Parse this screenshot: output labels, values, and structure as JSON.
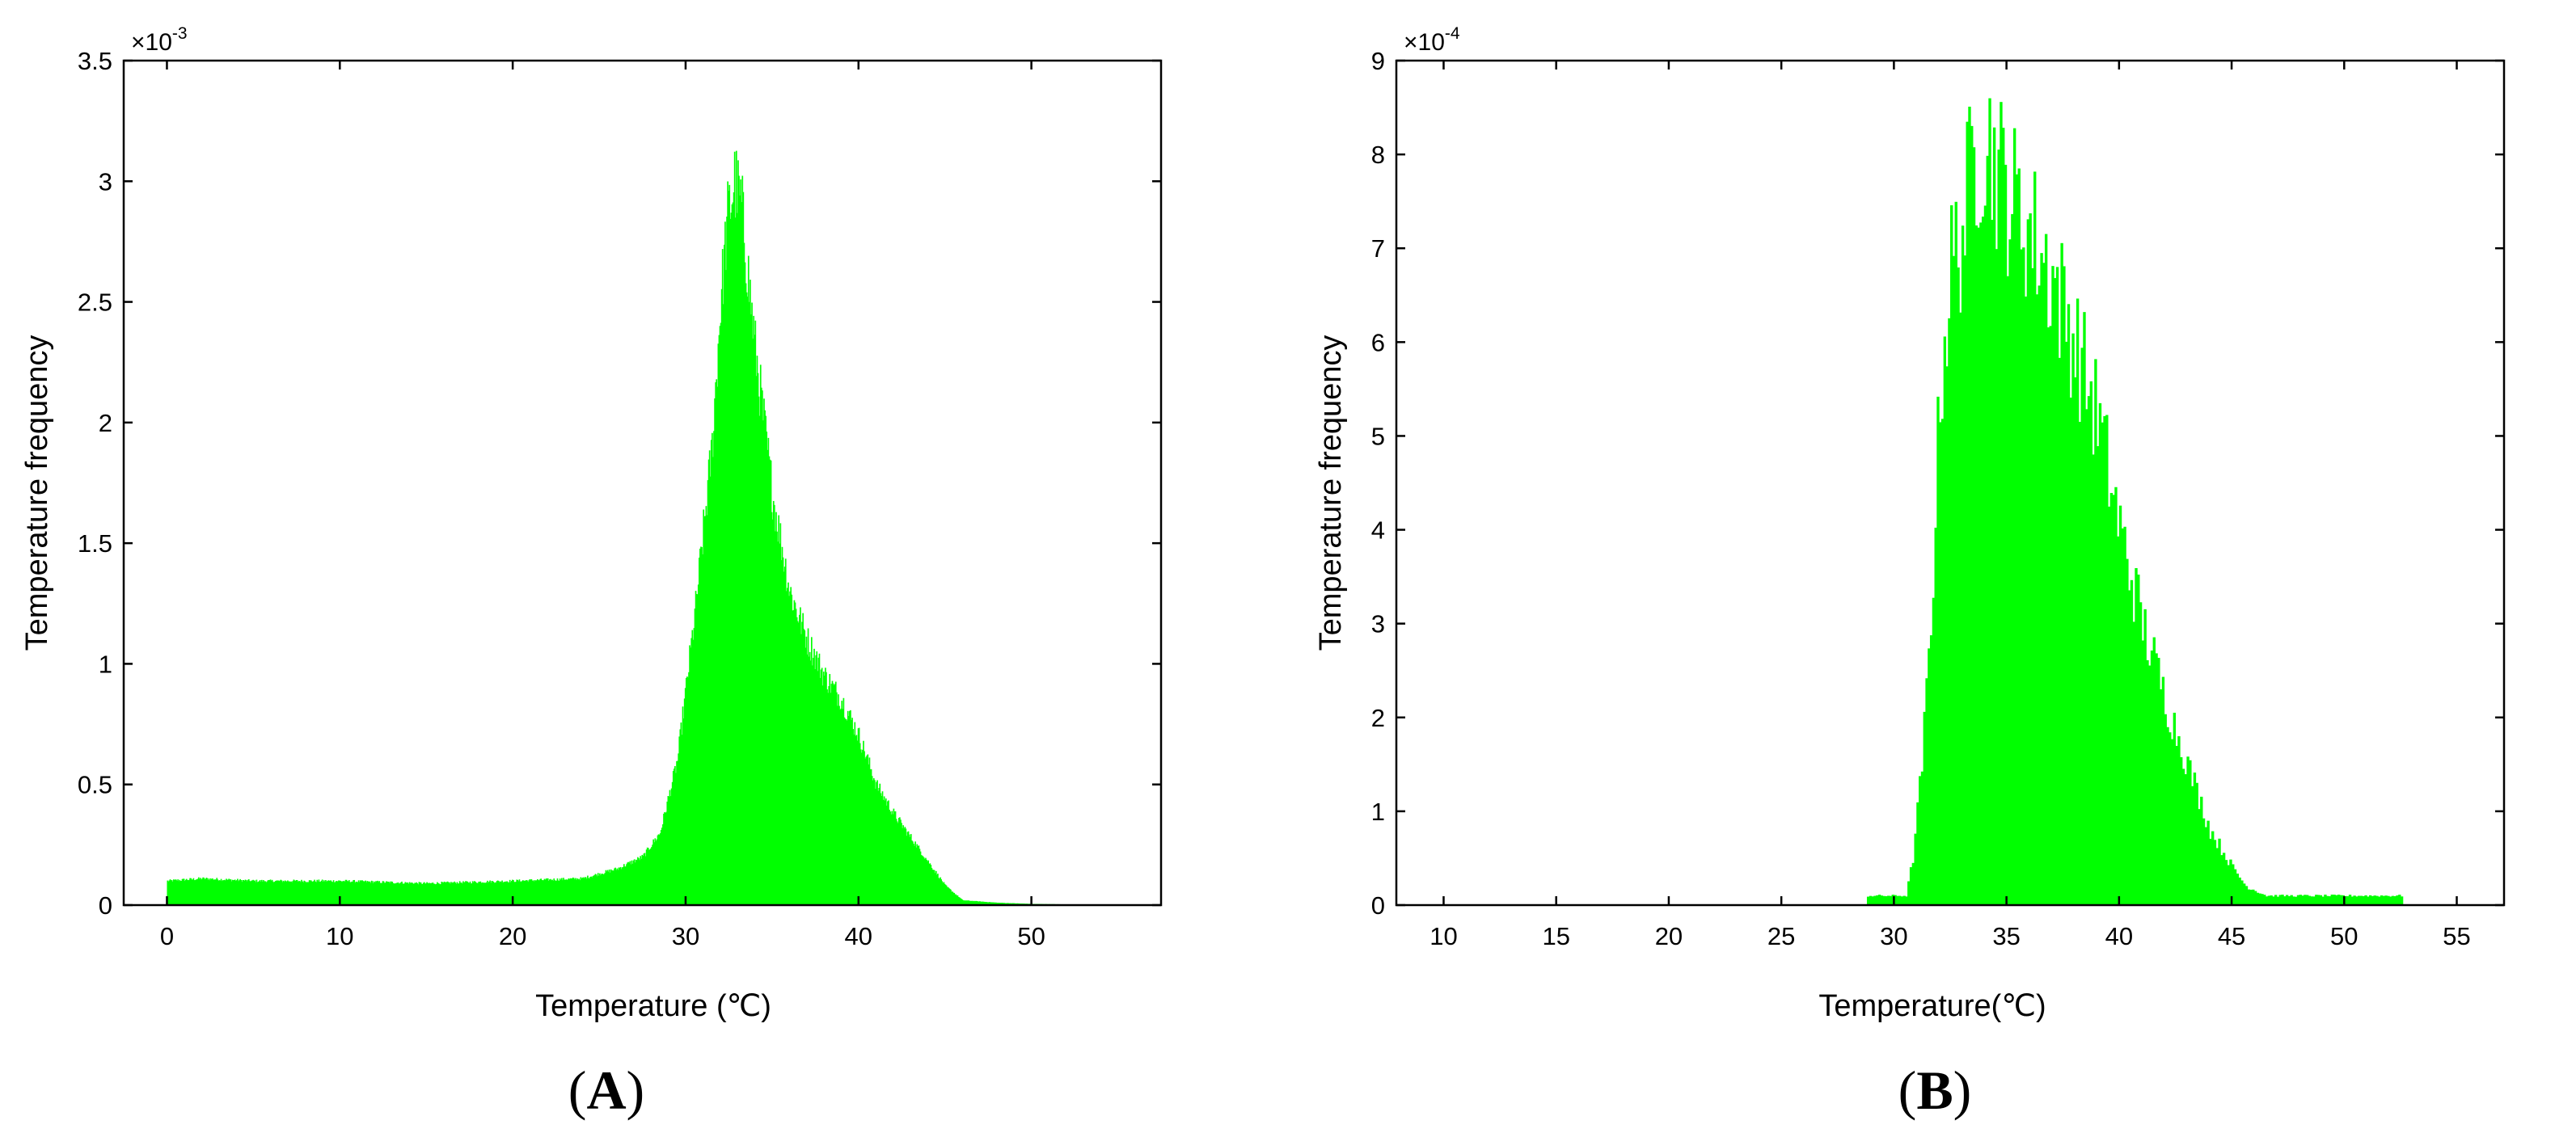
{
  "colors": {
    "bar": "#00ff00",
    "axis": "#000000",
    "background": "#ffffff"
  },
  "chart_data": [
    {
      "type": "bar",
      "panel": "A",
      "xlabel": "Temperature (℃)",
      "ylabel": "Temperature frequency",
      "y_exponent_base": "×10",
      "y_exponent": "-3",
      "xlim": [
        -2.5,
        57.5
      ],
      "ylim": [
        0,
        0.0035
      ],
      "xticks": [
        0,
        10,
        20,
        30,
        40,
        50
      ],
      "yticks": [
        0,
        0.0005,
        0.001,
        0.0015,
        0.002,
        0.0025,
        0.003,
        0.0035
      ],
      "ytick_labels": [
        "0",
        "0.5",
        "1",
        "1.5",
        "2",
        "2.5",
        "3",
        "3.5"
      ],
      "grid": false,
      "distribution": {
        "x": [
          0,
          2,
          5,
          10,
          15,
          20,
          24,
          26,
          27.5,
          28.5,
          29.5,
          30.5,
          31.5,
          32,
          32.4,
          32.8,
          33.2,
          34,
          35,
          36,
          37,
          38,
          39,
          40,
          41,
          42,
          43,
          44,
          45,
          46,
          48,
          50,
          55
        ],
        "y": [
          0.0001,
          0.00011,
          0.0001,
          0.0001,
          9e-05,
          0.0001,
          0.00011,
          0.00015,
          0.0002,
          0.0003,
          0.0006,
          0.0012,
          0.0019,
          0.0025,
          0.00285,
          0.003,
          0.0029,
          0.0023,
          0.0017,
          0.0013,
          0.0011,
          0.00095,
          0.00085,
          0.0007,
          0.0005,
          0.00038,
          0.00028,
          0.00018,
          8e-05,
          2e-05,
          1e-05,
          5e-06,
          0.0
        ],
        "x_min": 0,
        "x_max": 55,
        "bin_width": 0.05,
        "noise": 0.06
      }
    },
    {
      "type": "bar",
      "panel": "B",
      "xlabel": "Temperature(℃)",
      "ylabel": "Temperature frequency",
      "y_exponent_base": "×10",
      "y_exponent": "-4",
      "xlim": [
        7.9,
        57.1
      ],
      "ylim": [
        0,
        0.0009
      ],
      "xticks": [
        10,
        15,
        20,
        25,
        30,
        35,
        40,
        45,
        50,
        55
      ],
      "yticks": [
        0,
        0.0001,
        0.0002,
        0.0003,
        0.0004,
        0.0005,
        0.0006,
        0.0007,
        0.0008,
        0.0009
      ],
      "ytick_labels": [
        "0",
        "1",
        "2",
        "3",
        "4",
        "5",
        "6",
        "7",
        "8",
        "9"
      ],
      "grid": false,
      "distribution": {
        "x": [
          28.8,
          30.5,
          30.8,
          31.2,
          31.6,
          32,
          32.5,
          33,
          33.5,
          34,
          35,
          36,
          37,
          38,
          39,
          40,
          41,
          42,
          43,
          44,
          45,
          45.6,
          46.5,
          48,
          50,
          52.5
        ],
        "y": [
          1e-05,
          1e-05,
          5e-05,
          0.00015,
          0.0003,
          0.00055,
          0.00068,
          0.00072,
          0.0008,
          0.00082,
          0.00076,
          0.00072,
          0.00067,
          0.0006,
          0.00052,
          0.0004,
          0.0003,
          0.00022,
          0.00015,
          8e-05,
          4e-05,
          2e-05,
          1e-05,
          1e-05,
          1e-05,
          1e-05
        ],
        "x_min": 28.8,
        "x_max": 52.6,
        "bin_width": 0.1,
        "noise": 0.12
      }
    }
  ]
}
